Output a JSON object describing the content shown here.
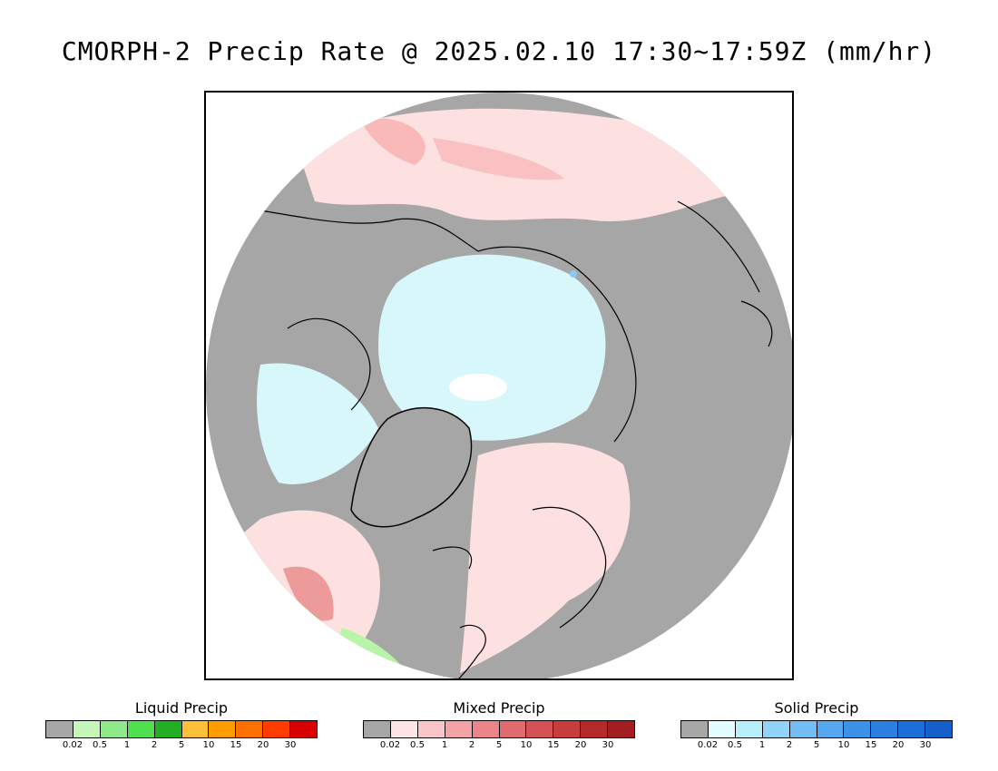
{
  "title": "CMORPH-2 Precip Rate @ 2025.02.10 17:30~17:59Z (mm/hr)",
  "map": {
    "projection": "north-polar-stereographic",
    "colors": {
      "no_precip": "#a6a6a6",
      "sea_ice_light": "#d8f7fa",
      "ice_core": "#ffffff",
      "mixed_light": "#fde0e0",
      "mixed_mid": "#f6a8a8",
      "mixed_strong": "#e26b6b",
      "liquid_light": "#b8f5a8",
      "liquid_mid": "#5be85b",
      "solid_mid": "#89c9f5",
      "coast": "#000000"
    }
  },
  "legends": [
    {
      "title": "Liquid Precip",
      "colors": [
        "#a6a6a6",
        "#c6f7b9",
        "#8fe98a",
        "#4fdf4f",
        "#22b022",
        "#ffc039",
        "#ff9d00",
        "#ff7000",
        "#ff3b00",
        "#d80000"
      ],
      "ticks": [
        "0.02",
        "0.5",
        "1",
        "2",
        "5",
        "10",
        "15",
        "20",
        "30"
      ]
    },
    {
      "title": "Mixed Precip",
      "colors": [
        "#a6a6a6",
        "#fde4e6",
        "#f9c5c9",
        "#f3a3a6",
        "#ec8589",
        "#e06a6d",
        "#d45255",
        "#c63c3f",
        "#b52a2d",
        "#a21e21"
      ],
      "ticks": [
        "0.02",
        "0.5",
        "1",
        "2",
        "5",
        "10",
        "15",
        "20",
        "30"
      ]
    },
    {
      "title": "Solid Precip",
      "colors": [
        "#a6a6a6",
        "#e3fcff",
        "#b5f0fb",
        "#92d3f8",
        "#72bdf3",
        "#56a8ee",
        "#3b92e6",
        "#2a7fe0",
        "#1c6ed8",
        "#1560c9"
      ],
      "ticks": [
        "0.02",
        "0.5",
        "1",
        "2",
        "5",
        "10",
        "15",
        "20",
        "30"
      ]
    }
  ]
}
